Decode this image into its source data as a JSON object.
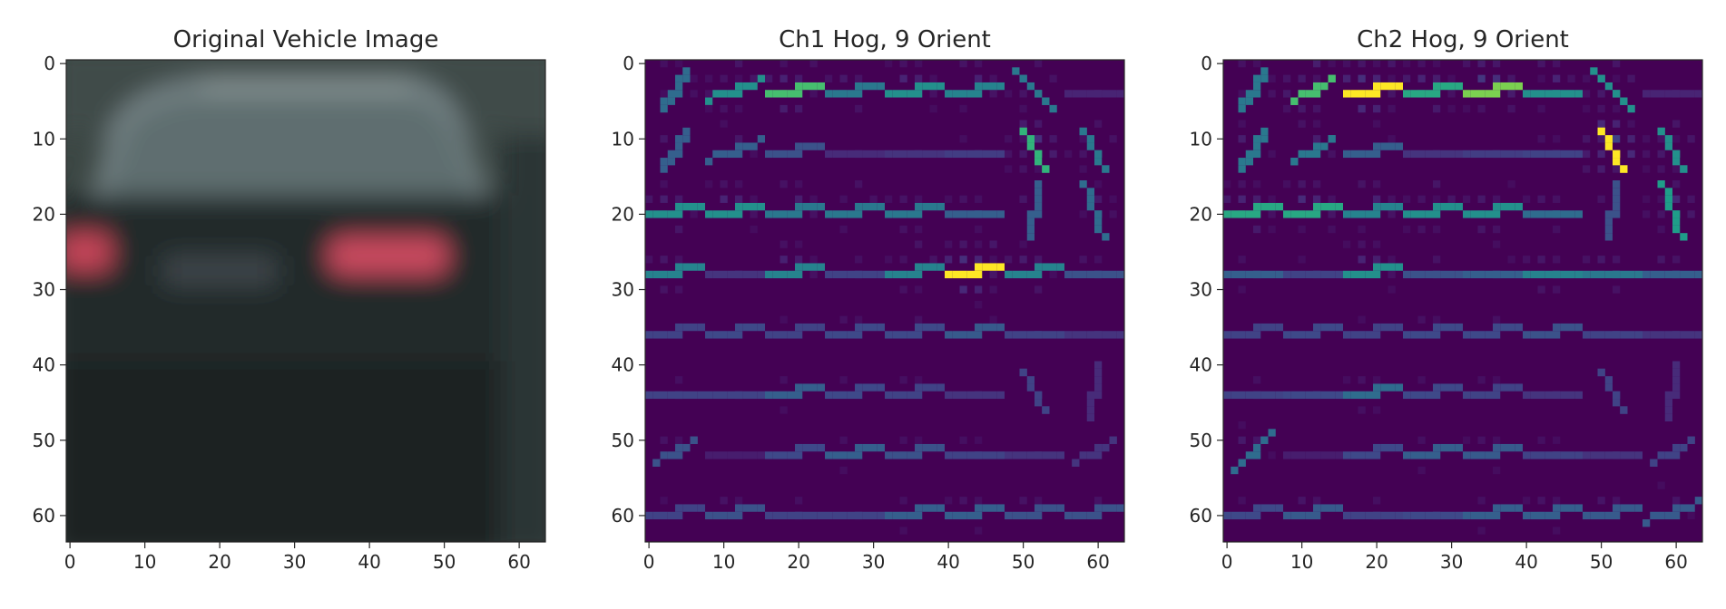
{
  "chart_data": [
    {
      "type": "heatmap",
      "title": "Original Vehicle Image",
      "xlabel": "",
      "ylabel": "",
      "xlim": [
        0,
        63
      ],
      "ylim": [
        63,
        0
      ],
      "x_ticks": [
        0,
        10,
        20,
        30,
        40,
        50,
        60
      ],
      "y_ticks": [
        0,
        10,
        20,
        30,
        40,
        50,
        60
      ],
      "grid": false,
      "colormap": "rgb",
      "image_content": "rear view of a dark sedan with red tail lights, 64x64 pixels",
      "colors": {
        "sky": "#4b5856",
        "rear_window": "#6c7a78",
        "roof_highlight": "#8a9694",
        "body": "#20262a",
        "lower_body": "#1a1f21",
        "tail_light": "#c9455a",
        "plate": "#3d4447",
        "background_right": "#2b3533"
      }
    },
    {
      "type": "heatmap",
      "title": "Ch1 Hog, 9 Orient",
      "xlabel": "",
      "ylabel": "",
      "xlim": [
        0,
        63
      ],
      "ylim": [
        63,
        0
      ],
      "x_ticks": [
        0,
        10,
        20,
        30,
        40,
        50,
        60
      ],
      "y_ticks": [
        0,
        10,
        20,
        30,
        40,
        50,
        60
      ],
      "grid": false,
      "colormap": "viridis",
      "cell_size": 8,
      "cells": [
        [
          {
            "a": 55,
            "s": 0.35
          },
          {
            "a": 20,
            "s": 0.5
          },
          {
            "a": 15,
            "s": 0.7
          },
          {
            "a": 5,
            "s": 0.4
          },
          {
            "a": 10,
            "s": 0.5
          },
          {
            "a": 5,
            "s": 0.45
          },
          {
            "a": -40,
            "s": 0.4
          },
          {
            "a": 0,
            "s": 0.1
          }
        ],
        [
          {
            "a": 55,
            "s": 0.3
          },
          {
            "a": 20,
            "s": 0.3
          },
          {
            "a": 15,
            "s": 0.25
          },
          {
            "a": 0,
            "s": 0.12
          },
          {
            "a": 0,
            "s": 0.15
          },
          {
            "a": 0,
            "s": 0.18
          },
          {
            "a": -60,
            "s": 0.65
          },
          {
            "a": -60,
            "s": 0.4
          }
        ],
        [
          {
            "a": 5,
            "s": 0.5
          },
          {
            "a": 5,
            "s": 0.5
          },
          {
            "a": 5,
            "s": 0.4
          },
          {
            "a": 10,
            "s": 0.4
          },
          {
            "a": 10,
            "s": 0.4
          },
          {
            "a": 0,
            "s": 0.3
          },
          {
            "a": 80,
            "s": 0.3
          },
          {
            "a": -70,
            "s": 0.35
          }
        ],
        [
          {
            "a": 10,
            "s": 0.45
          },
          {
            "a": 0,
            "s": 0.15
          },
          {
            "a": 15,
            "s": 0.45
          },
          {
            "a": 0,
            "s": 0.2
          },
          {
            "a": 15,
            "s": 0.45
          },
          {
            "a": 15,
            "s": 1.0
          },
          {
            "a": 10,
            "s": 0.45
          },
          {
            "a": 0,
            "s": 0.25
          }
        ],
        [
          {
            "a": 5,
            "s": 0.2
          },
          {
            "a": 5,
            "s": 0.22
          },
          {
            "a": 5,
            "s": 0.2
          },
          {
            "a": 5,
            "s": 0.22
          },
          {
            "a": 5,
            "s": 0.22
          },
          {
            "a": 10,
            "s": 0.28
          },
          {
            "a": 0,
            "s": 0.2
          },
          {
            "a": 0,
            "s": 0.15
          }
        ],
        [
          {
            "a": 0,
            "s": 0.2
          },
          {
            "a": 0,
            "s": 0.2
          },
          {
            "a": 10,
            "s": 0.3
          },
          {
            "a": 5,
            "s": 0.22
          },
          {
            "a": 5,
            "s": 0.2
          },
          {
            "a": 0,
            "s": 0.15
          },
          {
            "a": -60,
            "s": 0.2
          },
          {
            "a": 80,
            "s": 0.12
          }
        ],
        [
          {
            "a": 30,
            "s": 0.25
          },
          {
            "a": 0,
            "s": 0.08
          },
          {
            "a": 5,
            "s": 0.22
          },
          {
            "a": 10,
            "s": 0.3
          },
          {
            "a": 5,
            "s": 0.25
          },
          {
            "a": 0,
            "s": 0.2
          },
          {
            "a": 0,
            "s": 0.15
          },
          {
            "a": 30,
            "s": 0.15
          }
        ],
        [
          {
            "a": 5,
            "s": 0.2
          },
          {
            "a": 5,
            "s": 0.25
          },
          {
            "a": 0,
            "s": 0.2
          },
          {
            "a": 0,
            "s": 0.2
          },
          {
            "a": 10,
            "s": 0.3
          },
          {
            "a": 10,
            "s": 0.3
          },
          {
            "a": 10,
            "s": 0.25
          },
          {
            "a": 15,
            "s": 0.25
          }
        ]
      ]
    },
    {
      "type": "heatmap",
      "title": "Ch2 Hog, 9 Orient",
      "xlabel": "",
      "ylabel": "",
      "xlim": [
        0,
        63
      ],
      "ylim": [
        63,
        0
      ],
      "x_ticks": [
        0,
        10,
        20,
        30,
        40,
        50,
        60
      ],
      "y_ticks": [
        0,
        10,
        20,
        30,
        40,
        50,
        60
      ],
      "grid": false,
      "colormap": "viridis",
      "cell_size": 8,
      "cells": [
        [
          {
            "a": 55,
            "s": 0.4
          },
          {
            "a": 30,
            "s": 0.7
          },
          {
            "a": 15,
            "s": 1.0
          },
          {
            "a": 10,
            "s": 0.6
          },
          {
            "a": 15,
            "s": 0.8
          },
          {
            "a": 0,
            "s": 0.5
          },
          {
            "a": -45,
            "s": 0.5
          },
          {
            "a": 0,
            "s": 0.1
          }
        ],
        [
          {
            "a": 55,
            "s": 0.4
          },
          {
            "a": 25,
            "s": 0.4
          },
          {
            "a": 15,
            "s": 0.3
          },
          {
            "a": 0,
            "s": 0.15
          },
          {
            "a": 0,
            "s": 0.18
          },
          {
            "a": 0,
            "s": 0.2
          },
          {
            "a": -62,
            "s": 1.0
          },
          {
            "a": -60,
            "s": 0.5
          }
        ],
        [
          {
            "a": 10,
            "s": 0.6
          },
          {
            "a": 10,
            "s": 0.6
          },
          {
            "a": 5,
            "s": 0.45
          },
          {
            "a": 10,
            "s": 0.5
          },
          {
            "a": 10,
            "s": 0.5
          },
          {
            "a": 0,
            "s": 0.35
          },
          {
            "a": 80,
            "s": 0.25
          },
          {
            "a": -70,
            "s": 0.55
          }
        ],
        [
          {
            "a": 0,
            "s": 0.3
          },
          {
            "a": 0,
            "s": 0.2
          },
          {
            "a": 15,
            "s": 0.5
          },
          {
            "a": 0,
            "s": 0.25
          },
          {
            "a": 0,
            "s": 0.3
          },
          {
            "a": 0,
            "s": 0.45
          },
          {
            "a": 0,
            "s": 0.4
          },
          {
            "a": 0,
            "s": 0.3
          }
        ],
        [
          {
            "a": 5,
            "s": 0.2
          },
          {
            "a": 5,
            "s": 0.22
          },
          {
            "a": 5,
            "s": 0.2
          },
          {
            "a": 5,
            "s": 0.22
          },
          {
            "a": 5,
            "s": 0.22
          },
          {
            "a": 5,
            "s": 0.25
          },
          {
            "a": 0,
            "s": 0.2
          },
          {
            "a": 0,
            "s": 0.15
          }
        ],
        [
          {
            "a": 0,
            "s": 0.2
          },
          {
            "a": 0,
            "s": 0.22
          },
          {
            "a": 15,
            "s": 0.35
          },
          {
            "a": 5,
            "s": 0.22
          },
          {
            "a": 5,
            "s": 0.2
          },
          {
            "a": 0,
            "s": 0.15
          },
          {
            "a": -60,
            "s": 0.2
          },
          {
            "a": 80,
            "s": 0.12
          }
        ],
        [
          {
            "a": 40,
            "s": 0.35
          },
          {
            "a": 0,
            "s": 0.08
          },
          {
            "a": 5,
            "s": 0.22
          },
          {
            "a": 10,
            "s": 0.3
          },
          {
            "a": 10,
            "s": 0.28
          },
          {
            "a": 0,
            "s": 0.2
          },
          {
            "a": 0,
            "s": 0.15
          },
          {
            "a": 30,
            "s": 0.2
          }
        ],
        [
          {
            "a": 5,
            "s": 0.22
          },
          {
            "a": 5,
            "s": 0.28
          },
          {
            "a": 0,
            "s": 0.2
          },
          {
            "a": 0,
            "s": 0.22
          },
          {
            "a": 10,
            "s": 0.3
          },
          {
            "a": 10,
            "s": 0.3
          },
          {
            "a": 15,
            "s": 0.28
          },
          {
            "a": 20,
            "s": 0.28
          }
        ]
      ]
    }
  ]
}
